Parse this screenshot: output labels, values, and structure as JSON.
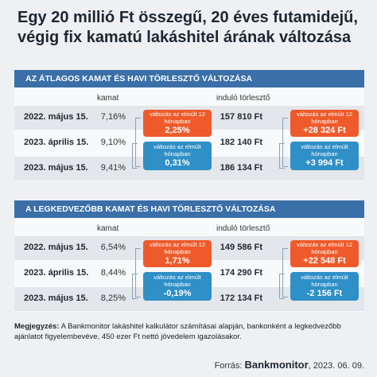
{
  "title": "Egy 20 millió Ft összegű, 20 éves futamidejű, végig fix kamatú lakáshitel árának változása",
  "sections": [
    {
      "header": "AZ ÁTLAGOS KAMAT ÉS HAVI TÖRLESZTŐ VÁLTOZÁSA",
      "col_rate": "kamat",
      "col_payment": "induló törlesztő",
      "rows": [
        {
          "date": "2022. május 15.",
          "rate": "7,16%",
          "payment": "157 810 Ft"
        },
        {
          "date": "2023. április 15.",
          "rate": "9,10%",
          "payment": "182 140 Ft"
        },
        {
          "date": "2023. május 15.",
          "rate": "9,41%",
          "payment": "186 134 Ft"
        }
      ],
      "rate_change_12m": {
        "label": "változás az elmúlt 12 hónapban",
        "value": "2,25%"
      },
      "rate_change_1m": {
        "label": "változás az elmúlt hónapban",
        "value": "0,31%"
      },
      "payment_change_12m": {
        "label": "változás az elmúlt 12 hónapban",
        "value": "+28 324 Ft"
      },
      "payment_change_1m": {
        "label": "változás az elmúlt hónapban",
        "value": "+3 994 Ft"
      }
    },
    {
      "header": "A LEGKEDVEZŐBB KAMAT ÉS HAVI TÖRLESZTŐ VÁLTOZÁSA",
      "col_rate": "kamat",
      "col_payment": "induló törlesztő",
      "rows": [
        {
          "date": "2022. május 15.",
          "rate": "6,54%",
          "payment": "149 586 Ft"
        },
        {
          "date": "2023. április 15.",
          "rate": "8,44%",
          "payment": "174 290 Ft"
        },
        {
          "date": "2023. május 15.",
          "rate": "8,25%",
          "payment": "172 134 Ft"
        }
      ],
      "rate_change_12m": {
        "label": "változás az elmúlt 12 hónapban",
        "value": "1,71%"
      },
      "rate_change_1m": {
        "label": "változás az elmúlt hónapban",
        "value": "-0,19%"
      },
      "payment_change_12m": {
        "label": "változás az elmúlt 12 hónapban",
        "value": "+22 548 Ft"
      },
      "payment_change_1m": {
        "label": "változás az elmúlt hónapban",
        "value": "-2 156 Ft"
      }
    }
  ],
  "note": {
    "label": "Megjegyzés:",
    "text": "A Bankmonitor lakáshitel kalkulátor számításai alapján, bankonként a legkedvezőbb ajánlatot figyelembevéve, 450 ezer Ft nettó jövedelem igazolásakor."
  },
  "source": {
    "label": "Forrás:",
    "brand": "Bankmonitor",
    "date": ", 2023. 06. 09."
  }
}
